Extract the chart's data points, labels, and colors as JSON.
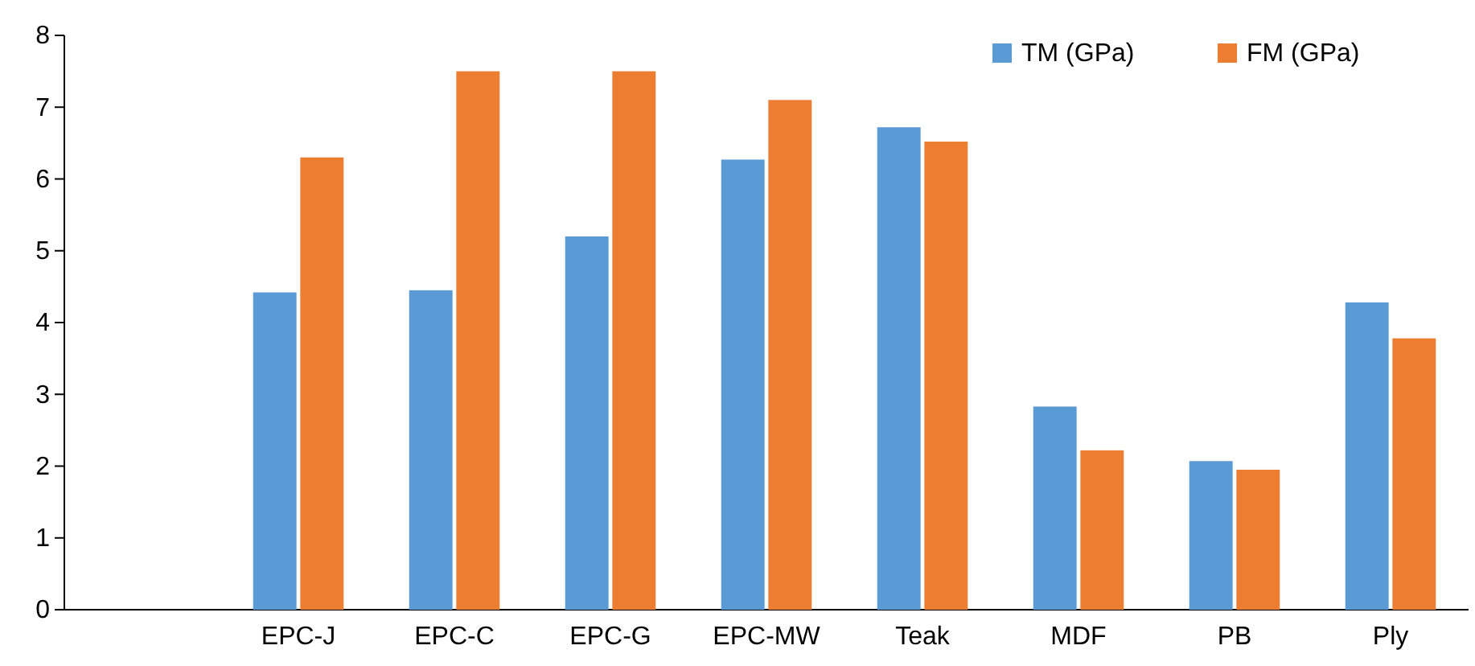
{
  "chart_data": {
    "type": "bar",
    "categories": [
      null,
      "EPC-J",
      "EPC-C",
      "EPC-G",
      "EPC-MW",
      "Teak",
      "MDF",
      "PB",
      "Ply"
    ],
    "series": [
      {
        "name": "TM (GPa)",
        "color": "#5b9bd5",
        "values": [
          null,
          4.42,
          4.45,
          5.2,
          6.27,
          6.72,
          2.83,
          2.07,
          4.28
        ]
      },
      {
        "name": "FM (GPa)",
        "color": "#ed7d31",
        "values": [
          null,
          6.3,
          7.5,
          7.5,
          7.1,
          6.52,
          2.22,
          1.95,
          3.78
        ]
      }
    ],
    "ylim": [
      0,
      8
    ],
    "yticks": [
      0,
      1,
      2,
      3,
      4,
      5,
      6,
      7,
      8
    ],
    "legend": "top right"
  }
}
